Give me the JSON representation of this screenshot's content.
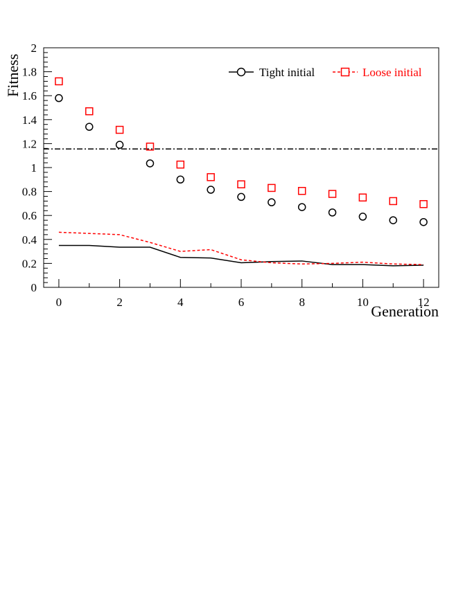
{
  "chart_data": {
    "type": "scatter",
    "xlabel": "Generation",
    "ylabel": "Fitness",
    "xlim": [
      -0.5,
      12.5
    ],
    "ylim": [
      0,
      2
    ],
    "x_ticks": [
      0,
      2,
      4,
      6,
      8,
      10,
      12
    ],
    "y_ticks": [
      0,
      0.2,
      0.4,
      0.6,
      0.8,
      1,
      1.2,
      1.4,
      1.6,
      1.8,
      2
    ],
    "y_tick_labels": [
      "0",
      "0.2",
      "0.4",
      "0.6",
      "0.8",
      "1",
      "1.2",
      "1.4",
      "1.6",
      "1.8",
      "2"
    ],
    "grid": false,
    "legend_position": "top-right",
    "series": [
      {
        "name": "Tight initial",
        "color": "#000000",
        "marker": "circle",
        "x": [
          0,
          1,
          2,
          3,
          4,
          5,
          6,
          7,
          8,
          9,
          10,
          11,
          12
        ],
        "values": [
          1.58,
          1.34,
          1.19,
          1.035,
          0.9,
          0.815,
          0.755,
          0.71,
          0.67,
          0.625,
          0.59,
          0.56,
          0.545
        ],
        "line_values": [
          0.35,
          0.35,
          0.335,
          0.335,
          0.25,
          0.245,
          0.205,
          0.215,
          0.22,
          0.19,
          0.19,
          0.18,
          0.185
        ]
      },
      {
        "name": "Loose initial",
        "color": "#ff0000",
        "marker": "square",
        "x": [
          0,
          1,
          2,
          3,
          4,
          5,
          6,
          7,
          8,
          9,
          10,
          11,
          12
        ],
        "values": [
          1.72,
          1.47,
          1.315,
          1.175,
          1.025,
          0.92,
          0.86,
          0.83,
          0.805,
          0.78,
          0.75,
          0.72,
          0.695
        ],
        "line_values": [
          0.46,
          0.45,
          0.44,
          0.375,
          0.3,
          0.315,
          0.23,
          0.205,
          0.195,
          0.2,
          0.21,
          0.195,
          0.19
        ]
      }
    ],
    "reference_line": {
      "y": 1.155,
      "color": "#000000",
      "style": "dash-dot"
    }
  }
}
